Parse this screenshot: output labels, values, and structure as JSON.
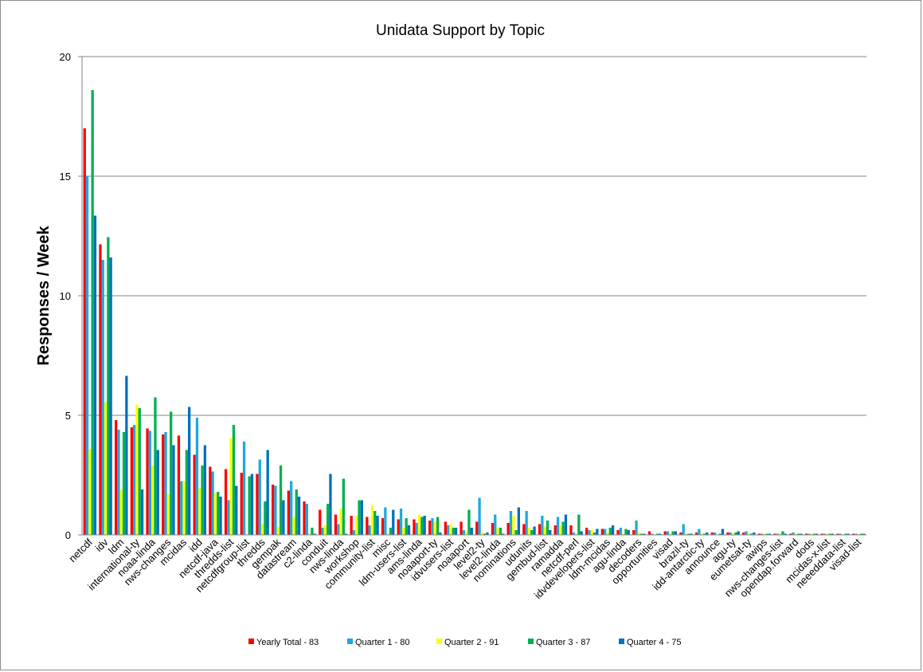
{
  "chart_data": {
    "type": "bar",
    "title": "Unidata Support by Topic",
    "xlabel": "",
    "ylabel": "Responses / Week",
    "ylim": [
      0,
      20
    ],
    "yticks": [
      0,
      5,
      10,
      15,
      20
    ],
    "grid": true,
    "legend_position": "bottom",
    "categories": [
      "netcdf",
      "idv",
      "ldm",
      "international-ty",
      "noaa-linda",
      "nws-changes",
      "mcidas",
      "idd",
      "netcdf-java",
      "thredds-list",
      "netcdfgroup-list",
      "thredds",
      "gempak",
      "datastream",
      "c2-linda",
      "conduit",
      "nws-linda",
      "workshop",
      "community-list",
      "misc",
      "ldm-users-list",
      "ams-linda",
      "noaaport-ty",
      "idvusers-list",
      "noaaport",
      "level2-ty",
      "level2-linda",
      "nominations",
      "udunits",
      "gembud-list",
      "ramadda",
      "netcdf-perl",
      "idvdevelopers-list",
      "ldm-mcidas",
      "agu-linda",
      "decoders",
      "opportunities",
      "visad",
      "brazil-ty",
      "idd-antarctic-ty",
      "announce",
      "agu-ty",
      "eumetsat-ty",
      "awips",
      "nws-changes-list",
      "opendap.forward",
      "dods",
      "mcidas-x-list",
      "neeeddata-list",
      "visad-list"
    ],
    "series": [
      {
        "name": "Yearly Total  - 83",
        "color": "#ff0000",
        "values": [
          17.0,
          12.15,
          4.8,
          4.5,
          4.45,
          4.2,
          4.15,
          3.35,
          2.85,
          2.75,
          2.6,
          2.55,
          2.1,
          1.85,
          1.4,
          1.05,
          0.85,
          0.8,
          0.75,
          0.7,
          0.65,
          0.65,
          0.6,
          0.55,
          0.55,
          0.55,
          0.5,
          0.5,
          0.45,
          0.45,
          0.4,
          0.4,
          0.3,
          0.25,
          0.2,
          0.2,
          0.15,
          0.15,
          0.1,
          0.1,
          0.1,
          0.1,
          0.1,
          0.05,
          0.05,
          0.05,
          0.05,
          0.05,
          0.05,
          0.05
        ]
      },
      {
        "name": "Quarter 1 - 80",
        "color": "#1ea8e0",
        "values": [
          15.0,
          11.5,
          4.4,
          4.6,
          4.35,
          4.3,
          2.25,
          4.9,
          2.65,
          1.45,
          3.9,
          3.15,
          2.05,
          2.25,
          1.3,
          0.3,
          0.45,
          0.2,
          0.4,
          1.15,
          1.1,
          0.5,
          0.7,
          0.4,
          0.2,
          1.55,
          0.85,
          1.0,
          1.0,
          0.8,
          0.75,
          0.1,
          0.2,
          0.25,
          0.3,
          0.6,
          0.05,
          0.15,
          0.45,
          0.25,
          0.1,
          0.1,
          0.15,
          0.05,
          0.05,
          0.1,
          0.05,
          0.05,
          0.05,
          0.05
        ]
      },
      {
        "name": "Quarter 2 - 91",
        "color": "#ffff00",
        "values": [
          3.6,
          5.55,
          1.9,
          5.45,
          2.9,
          1.7,
          2.25,
          1.95,
          1.75,
          4.05,
          0.0,
          0.45,
          0.35,
          0.75,
          0.05,
          0.4,
          1.1,
          0.8,
          1.25,
          0.05,
          0.3,
          0.85,
          0.55,
          0.45,
          0.15,
          0.1,
          0.3,
          0.8,
          0.3,
          0.35,
          0.4,
          0.05,
          0.2,
          0.1,
          0.05,
          0.1,
          0.0,
          0.05,
          0.05,
          0.05,
          0.0,
          0.05,
          0.05,
          0.05,
          0.05,
          0.05,
          0.05,
          0.05,
          0.0,
          0.05
        ]
      },
      {
        "name": "Quarter 3 - 87",
        "color": "#00b050",
        "values": [
          18.6,
          12.45,
          4.3,
          5.3,
          5.75,
          5.15,
          3.55,
          2.9,
          1.8,
          4.6,
          2.45,
          1.4,
          2.9,
          1.9,
          0.3,
          1.3,
          2.35,
          1.45,
          1.0,
          0.3,
          0.7,
          0.75,
          0.75,
          0.3,
          1.05,
          0.05,
          0.3,
          0.2,
          0.2,
          0.6,
          0.55,
          0.85,
          0.1,
          0.3,
          0.25,
          0.05,
          0.05,
          0.15,
          0.05,
          0.05,
          0.05,
          0.1,
          0.05,
          0.05,
          0.15,
          0.05,
          0.05,
          0.05,
          0.05,
          0.05
        ]
      },
      {
        "name": "Quarter 4 - 75",
        "color": "#0070c0",
        "values": [
          13.35,
          11.6,
          6.65,
          1.9,
          3.55,
          3.75,
          5.35,
          3.75,
          1.6,
          2.05,
          2.55,
          3.55,
          1.45,
          1.6,
          0.05,
          2.55,
          0.05,
          1.45,
          0.8,
          1.05,
          0.4,
          0.8,
          0.1,
          0.3,
          0.3,
          0.1,
          0.05,
          1.15,
          0.35,
          0.2,
          0.85,
          0.15,
          0.25,
          0.4,
          0.2,
          0.05,
          0.05,
          0.15,
          0.05,
          0.1,
          0.25,
          0.15,
          0.1,
          0.05,
          0.05,
          0.05,
          0.05,
          0.05,
          0.05,
          0.05
        ]
      }
    ]
  }
}
